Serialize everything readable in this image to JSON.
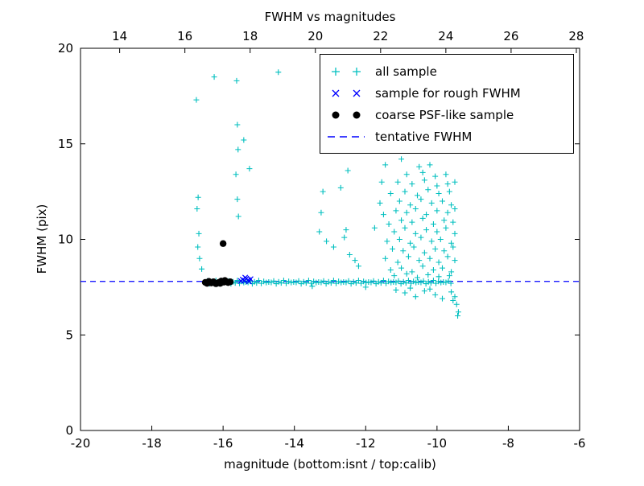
{
  "title": "FWHM vs magnitudes",
  "colors": {
    "all_sample": "#00bfbf",
    "rough_sample": "#0000ff",
    "psf_sample": "#000000",
    "tentative_line": "#0000ff",
    "frame": "#000000"
  },
  "chart_data": {
    "type": "scatter",
    "title": "FWHM vs magnitudes",
    "xlabel": "magnitude (bottom:isnt / top:calib)",
    "ylabel": "FWHM (pix)",
    "xlim": [
      -20,
      -6
    ],
    "top_xlim": [
      12.8,
      28.1
    ],
    "ylim": [
      0,
      20
    ],
    "x_ticks_bottom": [
      -20,
      -18,
      -16,
      -14,
      -12,
      -10,
      -8,
      -6
    ],
    "x_ticks_top": [
      14,
      16,
      18,
      20,
      22,
      24,
      26,
      28
    ],
    "y_ticks": [
      0,
      5,
      10,
      15,
      20
    ],
    "grid": false,
    "legend_position": "upper right",
    "series": [
      {
        "name": "all sample",
        "marker": "plus",
        "color": "#00bfbf",
        "points": [
          [
            -16.5,
            7.75
          ],
          [
            -16.44,
            7.82
          ],
          [
            -16.38,
            7.68
          ],
          [
            -16.32,
            7.78
          ],
          [
            -16.26,
            7.72
          ],
          [
            -16.2,
            7.85
          ],
          [
            -16.14,
            7.7
          ],
          [
            -16.08,
            7.8
          ],
          [
            -16.02,
            7.74
          ],
          [
            -15.96,
            7.77
          ],
          [
            -15.9,
            7.75
          ],
          [
            -15.84,
            7.82
          ],
          [
            -15.78,
            7.68
          ],
          [
            -15.72,
            7.78
          ],
          [
            -15.66,
            7.72
          ],
          [
            -15.6,
            7.85
          ],
          [
            -15.54,
            7.7
          ],
          [
            -15.48,
            7.8
          ],
          [
            -15.42,
            7.74
          ],
          [
            -15.36,
            7.77
          ],
          [
            -15.3,
            7.75
          ],
          [
            -15.24,
            7.82
          ],
          [
            -15.18,
            7.68
          ],
          [
            -15.12,
            7.78
          ],
          [
            -15.06,
            7.72
          ],
          [
            -15.0,
            7.85
          ],
          [
            -14.93,
            7.7
          ],
          [
            -14.86,
            7.8
          ],
          [
            -14.79,
            7.74
          ],
          [
            -14.72,
            7.77
          ],
          [
            -14.65,
            7.75
          ],
          [
            -14.58,
            7.82
          ],
          [
            -14.51,
            7.68
          ],
          [
            -14.44,
            7.78
          ],
          [
            -14.37,
            7.72
          ],
          [
            -14.3,
            7.85
          ],
          [
            -14.23,
            7.7
          ],
          [
            -14.16,
            7.8
          ],
          [
            -14.09,
            7.74
          ],
          [
            -14.02,
            7.77
          ],
          [
            -13.95,
            7.75
          ],
          [
            -13.88,
            7.82
          ],
          [
            -13.81,
            7.68
          ],
          [
            -13.74,
            7.78
          ],
          [
            -13.67,
            7.72
          ],
          [
            -13.6,
            7.85
          ],
          [
            -13.53,
            7.7
          ],
          [
            -13.46,
            7.8
          ],
          [
            -13.39,
            7.74
          ],
          [
            -13.32,
            7.77
          ],
          [
            -13.25,
            7.75
          ],
          [
            -13.18,
            7.82
          ],
          [
            -13.11,
            7.68
          ],
          [
            -13.04,
            7.78
          ],
          [
            -12.97,
            7.72
          ],
          [
            -12.9,
            7.85
          ],
          [
            -12.83,
            7.7
          ],
          [
            -12.76,
            7.8
          ],
          [
            -12.69,
            7.74
          ],
          [
            -12.62,
            7.77
          ],
          [
            -12.55,
            7.75
          ],
          [
            -12.48,
            7.82
          ],
          [
            -12.41,
            7.68
          ],
          [
            -12.34,
            7.78
          ],
          [
            -12.27,
            7.72
          ],
          [
            -12.2,
            7.85
          ],
          [
            -12.13,
            7.7
          ],
          [
            -12.06,
            7.8
          ],
          [
            -11.99,
            7.74
          ],
          [
            -11.92,
            7.77
          ],
          [
            -11.85,
            7.75
          ],
          [
            -11.78,
            7.82
          ],
          [
            -11.71,
            7.68
          ],
          [
            -11.64,
            7.78
          ],
          [
            -11.57,
            7.72
          ],
          [
            -11.5,
            7.85
          ],
          [
            -11.43,
            7.7
          ],
          [
            -11.36,
            7.8
          ],
          [
            -11.29,
            7.74
          ],
          [
            -11.22,
            7.77
          ],
          [
            -11.15,
            7.75
          ],
          [
            -11.08,
            7.82
          ],
          [
            -11.01,
            7.68
          ],
          [
            -10.94,
            7.78
          ],
          [
            -10.87,
            7.72
          ],
          [
            -10.8,
            7.85
          ],
          [
            -10.73,
            7.7
          ],
          [
            -10.66,
            7.8
          ],
          [
            -10.59,
            7.74
          ],
          [
            -10.52,
            7.77
          ],
          [
            -10.45,
            7.75
          ],
          [
            -10.38,
            7.82
          ],
          [
            -10.31,
            7.68
          ],
          [
            -10.24,
            7.78
          ],
          [
            -10.17,
            7.72
          ],
          [
            -10.1,
            7.85
          ],
          [
            -10.03,
            7.7
          ],
          [
            -9.96,
            7.8
          ],
          [
            -9.89,
            7.74
          ],
          [
            -9.82,
            7.77
          ],
          [
            -9.75,
            7.75
          ],
          [
            -9.68,
            7.82
          ],
          [
            -9.61,
            7.7
          ],
          [
            -16.75,
            17.3
          ],
          [
            -16.7,
            12.2
          ],
          [
            -16.73,
            11.6
          ],
          [
            -16.68,
            10.3
          ],
          [
            -16.71,
            9.6
          ],
          [
            -16.66,
            9.0
          ],
          [
            -16.6,
            8.45
          ],
          [
            -16.25,
            18.5
          ],
          [
            -15.62,
            18.3
          ],
          [
            -15.6,
            16.0
          ],
          [
            -15.58,
            14.7
          ],
          [
            -15.64,
            13.4
          ],
          [
            -15.6,
            12.1
          ],
          [
            -15.57,
            11.2
          ],
          [
            -15.42,
            15.2
          ],
          [
            -15.26,
            13.7
          ],
          [
            -14.45,
            18.75
          ],
          [
            -13.2,
            12.5
          ],
          [
            -13.25,
            11.4
          ],
          [
            -13.3,
            10.4
          ],
          [
            -13.1,
            9.9
          ],
          [
            -12.9,
            9.6
          ],
          [
            -12.7,
            12.7
          ],
          [
            -12.5,
            13.6
          ],
          [
            -12.55,
            10.5
          ],
          [
            -12.6,
            10.1
          ],
          [
            -12.45,
            9.2
          ],
          [
            -12.3,
            8.9
          ],
          [
            -12.2,
            8.6
          ],
          [
            -11.0,
            14.2
          ],
          [
            -11.45,
            13.9
          ],
          [
            -10.5,
            13.8
          ],
          [
            -10.2,
            13.9
          ],
          [
            -10.85,
            13.4
          ],
          [
            -10.4,
            13.5
          ],
          [
            -10.05,
            13.3
          ],
          [
            -9.75,
            13.4
          ],
          [
            -11.55,
            13.0
          ],
          [
            -11.1,
            13.0
          ],
          [
            -10.7,
            12.9
          ],
          [
            -10.35,
            13.1
          ],
          [
            -10.0,
            12.8
          ],
          [
            -9.7,
            12.9
          ],
          [
            -9.5,
            13.0
          ],
          [
            -11.3,
            12.4
          ],
          [
            -10.9,
            12.5
          ],
          [
            -10.55,
            12.3
          ],
          [
            -10.25,
            12.6
          ],
          [
            -9.95,
            12.4
          ],
          [
            -9.65,
            12.5
          ],
          [
            -11.6,
            11.9
          ],
          [
            -11.05,
            12.0
          ],
          [
            -10.75,
            11.8
          ],
          [
            -10.45,
            12.1
          ],
          [
            -10.15,
            11.9
          ],
          [
            -9.85,
            12.0
          ],
          [
            -9.6,
            11.8
          ],
          [
            -11.5,
            11.3
          ],
          [
            -11.15,
            11.5
          ],
          [
            -10.85,
            11.4
          ],
          [
            -10.6,
            11.6
          ],
          [
            -10.3,
            11.3
          ],
          [
            -10.0,
            11.5
          ],
          [
            -9.7,
            11.4
          ],
          [
            -9.5,
            11.6
          ],
          [
            -11.75,
            10.6
          ],
          [
            -11.35,
            10.8
          ],
          [
            -11.0,
            11.0
          ],
          [
            -10.7,
            10.9
          ],
          [
            -10.4,
            11.1
          ],
          [
            -10.1,
            10.8
          ],
          [
            -9.8,
            11.0
          ],
          [
            -9.55,
            10.9
          ],
          [
            -11.2,
            10.4
          ],
          [
            -10.9,
            10.6
          ],
          [
            -10.6,
            10.3
          ],
          [
            -10.3,
            10.5
          ],
          [
            -10.0,
            10.4
          ],
          [
            -9.75,
            10.6
          ],
          [
            -9.5,
            10.3
          ],
          [
            -11.4,
            9.9
          ],
          [
            -11.05,
            10.0
          ],
          [
            -10.75,
            9.8
          ],
          [
            -10.45,
            10.1
          ],
          [
            -10.15,
            9.9
          ],
          [
            -9.9,
            10.0
          ],
          [
            -9.6,
            9.8
          ],
          [
            -11.25,
            9.5
          ],
          [
            -10.95,
            9.4
          ],
          [
            -10.65,
            9.6
          ],
          [
            -10.35,
            9.3
          ],
          [
            -10.05,
            9.5
          ],
          [
            -9.8,
            9.4
          ],
          [
            -9.55,
            9.6
          ],
          [
            -11.45,
            9.0
          ],
          [
            -11.1,
            8.8
          ],
          [
            -10.8,
            9.1
          ],
          [
            -10.5,
            8.9
          ],
          [
            -10.2,
            9.0
          ],
          [
            -9.95,
            8.8
          ],
          [
            -9.7,
            9.1
          ],
          [
            -9.5,
            8.9
          ],
          [
            -11.3,
            8.4
          ],
          [
            -11.0,
            8.5
          ],
          [
            -10.7,
            8.3
          ],
          [
            -10.4,
            8.6
          ],
          [
            -10.1,
            8.4
          ],
          [
            -9.85,
            8.5
          ],
          [
            -9.6,
            8.3
          ],
          [
            -11.2,
            8.1
          ],
          [
            -10.85,
            8.2
          ],
          [
            -10.55,
            8.0
          ],
          [
            -10.25,
            8.15
          ],
          [
            -9.95,
            8.05
          ],
          [
            -9.65,
            8.1
          ],
          [
            -11.15,
            7.35
          ],
          [
            -10.9,
            7.2
          ],
          [
            -10.6,
            7.0
          ],
          [
            -10.35,
            7.3
          ],
          [
            -10.05,
            7.1
          ],
          [
            -9.85,
            6.9
          ],
          [
            -9.6,
            7.25
          ],
          [
            -9.5,
            7.0
          ],
          [
            -10.75,
            7.45
          ],
          [
            -10.2,
            7.4
          ],
          [
            -13.5,
            7.55
          ],
          [
            -12.0,
            7.5
          ],
          [
            -9.45,
            6.6
          ],
          [
            -9.4,
            6.2
          ],
          [
            -9.42,
            6.0
          ],
          [
            -9.55,
            6.8
          ]
        ]
      },
      {
        "name": "sample for rough FWHM",
        "marker": "x",
        "color": "#0000ff",
        "points": [
          [
            -15.5,
            7.82
          ],
          [
            -15.45,
            7.9
          ],
          [
            -15.4,
            7.85
          ],
          [
            -15.35,
            7.95
          ],
          [
            -15.3,
            7.88
          ],
          [
            -15.27,
            7.8
          ],
          [
            -15.23,
            7.92
          ],
          [
            -15.38,
            8.0
          ]
        ]
      },
      {
        "name": "coarse PSF-like sample",
        "marker": "circle",
        "color": "#000000",
        "points": [
          [
            -16.5,
            7.75
          ],
          [
            -16.45,
            7.7
          ],
          [
            -16.4,
            7.8
          ],
          [
            -16.33,
            7.72
          ],
          [
            -16.27,
            7.78
          ],
          [
            -16.2,
            7.68
          ],
          [
            -16.12,
            7.75
          ],
          [
            -16.05,
            7.82
          ],
          [
            -15.98,
            7.76
          ],
          [
            -15.92,
            7.8
          ],
          [
            -15.86,
            7.74
          ],
          [
            -15.8,
            7.78
          ],
          [
            -16.08,
            7.7
          ],
          [
            -15.95,
            7.85
          ],
          [
            -16.0,
            9.78
          ]
        ]
      },
      {
        "name": "tentative FWHM",
        "type": "hline",
        "style": "dashed",
        "color": "#0000ff",
        "y": 7.8
      }
    ]
  }
}
